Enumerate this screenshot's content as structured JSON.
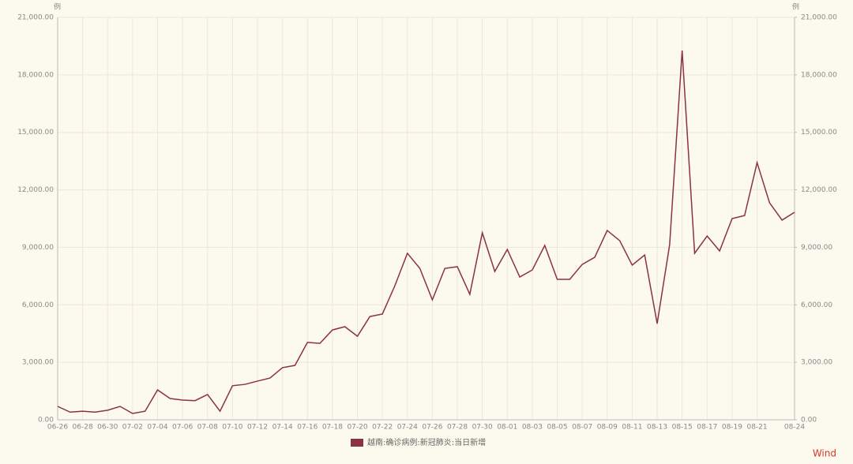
{
  "chart_data": {
    "type": "line",
    "y_label": "例",
    "y2_label": "例",
    "categories": [
      "06-26",
      null,
      "06-28",
      null,
      "06-30",
      null,
      "07-02",
      null,
      "07-04",
      null,
      "07-06",
      null,
      "07-08",
      null,
      "07-10",
      null,
      "07-12",
      null,
      "07-14",
      null,
      "07-16",
      null,
      "07-18",
      null,
      "07-20",
      null,
      "07-22",
      null,
      "07-24",
      null,
      "07-26",
      null,
      "07-28",
      null,
      "07-30",
      null,
      "08-01",
      null,
      "08-03",
      null,
      "08-05",
      null,
      "08-07",
      null,
      "08-09",
      null,
      "08-11",
      null,
      "08-13",
      null,
      "08-15",
      null,
      "08-17",
      null,
      "08-19",
      null,
      "08-21",
      null,
      null,
      "08-24"
    ],
    "series": [
      {
        "name": "越南:确诊病例:新冠肺炎:当日新增",
        "color": "#8b3340",
        "values": [
          700,
          400,
          450,
          400,
          500,
          700,
          330,
          450,
          1560,
          1110,
          1030,
          1000,
          1320,
          450,
          1780,
          1850,
          2020,
          2180,
          2720,
          2840,
          4040,
          3990,
          4690,
          4860,
          4360,
          5390,
          5520,
          7000,
          8690,
          7900,
          6260,
          7900,
          7990,
          6550,
          9760,
          7740,
          8890,
          7450,
          7820,
          9100,
          7330,
          7330,
          8110,
          8480,
          9880,
          9350,
          8070,
          8600,
          5020,
          9140,
          19270,
          8690,
          9590,
          8810,
          10500,
          10660,
          13420,
          11320,
          10420,
          10830
        ]
      }
    ],
    "ylim": [
      0,
      21000
    ],
    "yticks": [
      {
        "value": 0,
        "label": "0.00"
      },
      {
        "value": 3000,
        "label": "3,000.00"
      },
      {
        "value": 6000,
        "label": "6,000.00"
      },
      {
        "value": 9000,
        "label": "9,000.00"
      },
      {
        "value": 12000,
        "label": "12,000.00"
      },
      {
        "value": 15000,
        "label": "15,000.00"
      },
      {
        "value": 18000,
        "label": "18,000.00"
      },
      {
        "value": 21000,
        "label": "21,000.00"
      }
    ],
    "y2lim": [
      0,
      21000
    ],
    "y2ticks": [
      {
        "value": 0,
        "label": "0.00"
      },
      {
        "value": 3000,
        "label": "3,000.00"
      },
      {
        "value": 6000,
        "label": "6,000.00"
      },
      {
        "value": 9000,
        "label": "9,000.00"
      },
      {
        "value": 12000,
        "label": "12,000.00"
      },
      {
        "value": 15000,
        "label": "15,000.00"
      },
      {
        "value": 18000,
        "label": "18,000.00"
      },
      {
        "value": 21000,
        "label": "21,000.00"
      }
    ],
    "grid": true,
    "watermark": "Wind"
  }
}
